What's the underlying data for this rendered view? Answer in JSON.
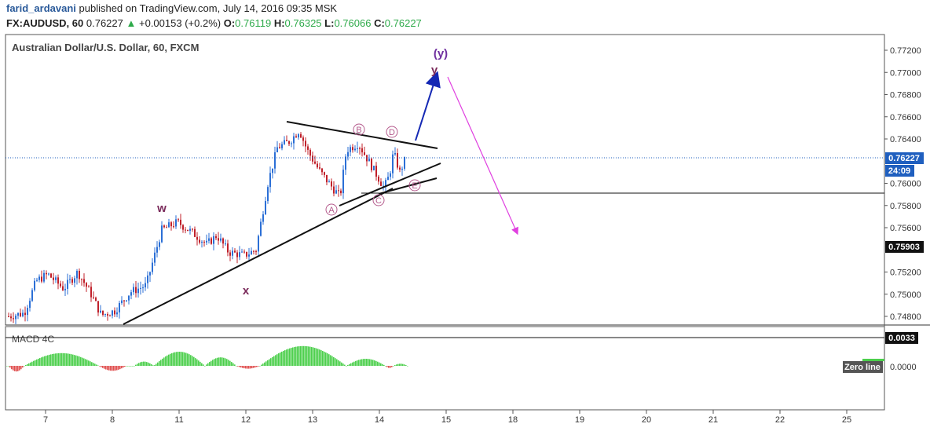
{
  "header": {
    "author": "farid_ardavani",
    "published_text": "published on TradingView.com, July 14, 2016 09:35 MSK",
    "symbol": "FX:AUDUSD, 60",
    "last": "0.76227",
    "change_arrow": "▲",
    "change": "+0.00153 (+0.2%)",
    "o_label": "O:",
    "o_value": "0.76119",
    "h_label": "H:",
    "h_value": "0.76325",
    "l_label": "L:",
    "l_value": "0.76066",
    "c_label": "C:",
    "c_value": "0.76227"
  },
  "colors": {
    "up_candle": "#2b6fd6",
    "down_candle": "#c0202a",
    "macd_up": "#4ccf4c",
    "macd_down": "#e05050",
    "wave_label": "#7a2a5a",
    "arrow_up": "#1428b4",
    "arrow_down": "#e040e0",
    "price_tag": "#1f5fbf"
  },
  "chart_data": {
    "type": "candlestick",
    "title": "Australian Dollar/U.S. Dollar, 60, FXCM",
    "ylim": [
      0.7472,
      0.7738
    ],
    "y_ticks": [
      "0.77200",
      "0.77000",
      "0.76800",
      "0.76600",
      "0.76400",
      "0.76000",
      "0.75800",
      "0.75600",
      "0.75200",
      "0.75000",
      "0.74800"
    ],
    "x_ticks": [
      "7",
      "8",
      "11",
      "12",
      "13",
      "14",
      "15",
      "18",
      "19",
      "20",
      "21",
      "22",
      "25"
    ],
    "current_price": "0.76227",
    "countdown": "24:09",
    "level_line_price": "0.75903",
    "wave_labels": [
      "(y)",
      "y",
      "w",
      "x",
      "A",
      "B",
      "C",
      "D",
      "E"
    ],
    "macd": {
      "name": "MACD 4C",
      "zero_label": "Zero line",
      "value_label": "0.0033",
      "zero_value": "0.0000"
    }
  }
}
